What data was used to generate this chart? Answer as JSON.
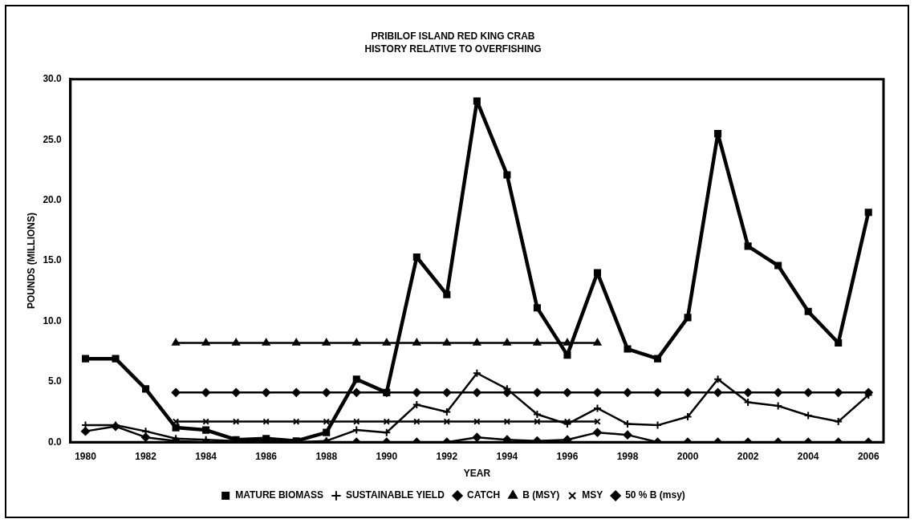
{
  "chart_data": {
    "type": "line",
    "title": "PRIBILOF ISLAND RED KING CRAB",
    "subtitle": "HISTORY RELATIVE TO OVERFISHING",
    "xlabel": "YEAR",
    "ylabel": "POUNDS (MILLIONS)",
    "categories": [
      "1980",
      null,
      "1982",
      null,
      "1984",
      null,
      "1986",
      null,
      "1988",
      null,
      "1990",
      null,
      "1992",
      null,
      "1994",
      null,
      "1996",
      null,
      "1998",
      null,
      "2000",
      null,
      "2002",
      null,
      "2004",
      null,
      "2006"
    ],
    "ylim": [
      0,
      30
    ],
    "yticks": [
      {
        "value": 0,
        "label": "0.0"
      },
      {
        "value": 5,
        "label": "5.0"
      },
      {
        "value": 10,
        "label": "10.0"
      },
      {
        "value": 15,
        "label": "15.0"
      },
      {
        "value": 20,
        "label": "20.0"
      },
      {
        "value": 25,
        "label": "25.0"
      },
      {
        "value": 30,
        "label": "30.0"
      }
    ],
    "grid": false,
    "legend": "bottom",
    "line_style": "solid",
    "series": [
      {
        "name": "MATURE BIOMASS",
        "color": "#000000",
        "marker": "square",
        "values": [
          6.9,
          6.9,
          4.4,
          1.2,
          1.0,
          0.2,
          0.3,
          0.1,
          0.8,
          5.2,
          4.1,
          15.3,
          12.2,
          28.2,
          22.1,
          11.1,
          7.2,
          14.0,
          7.7,
          6.9,
          10.3,
          25.5,
          16.2,
          14.6,
          10.8,
          8.2,
          19.0
        ]
      },
      {
        "name": "SUSTAINABLE YIELD",
        "color": "#000000",
        "marker": "cross",
        "values": [
          1.4,
          1.4,
          0.9,
          0.3,
          0.2,
          0.1,
          0.1,
          0.0,
          0.1,
          1.0,
          0.8,
          3.1,
          2.5,
          5.7,
          4.4,
          2.3,
          1.5,
          2.8,
          1.5,
          1.4,
          2.1,
          5.2,
          3.3,
          3.0,
          2.2,
          1.7,
          3.9
        ]
      },
      {
        "name": "CATCH",
        "color": "#000000",
        "marker": "diamond",
        "values": [
          0.9,
          1.3,
          0.4,
          0.1,
          0.0,
          0.0,
          0.0,
          0.0,
          0.0,
          0.0,
          0.0,
          0.0,
          0.0,
          0.4,
          0.2,
          0.1,
          0.2,
          0.8,
          0.6,
          0.0,
          0.0,
          0.0,
          0.0,
          0.0,
          0.0,
          0.0,
          0.0
        ]
      },
      {
        "name": "B (MSY)",
        "color": "#000000",
        "marker": "triangle",
        "values": [
          null,
          null,
          null,
          8.2,
          8.2,
          8.2,
          8.2,
          8.2,
          8.2,
          8.2,
          8.2,
          8.2,
          8.2,
          8.2,
          8.2,
          8.2,
          8.2,
          8.2,
          null,
          null,
          null,
          null,
          null,
          null,
          null,
          null,
          null
        ]
      },
      {
        "name": "MSY",
        "color": "#000000",
        "marker": "x",
        "values": [
          null,
          null,
          null,
          1.7,
          1.7,
          1.7,
          1.7,
          1.7,
          1.7,
          1.7,
          1.7,
          1.7,
          1.7,
          1.7,
          1.7,
          1.7,
          1.7,
          1.7,
          null,
          null,
          null,
          null,
          null,
          null,
          null,
          null,
          null
        ]
      },
      {
        "name": "50 % B (msy)",
        "color": "#000000",
        "marker": "diamond",
        "values": [
          null,
          null,
          null,
          4.1,
          4.1,
          4.1,
          4.1,
          4.1,
          4.1,
          4.1,
          4.1,
          4.1,
          4.1,
          4.1,
          4.1,
          4.1,
          4.1,
          4.1,
          4.1,
          4.1,
          4.1,
          4.1,
          4.1,
          4.1,
          4.1,
          4.1,
          4.1
        ]
      }
    ]
  }
}
